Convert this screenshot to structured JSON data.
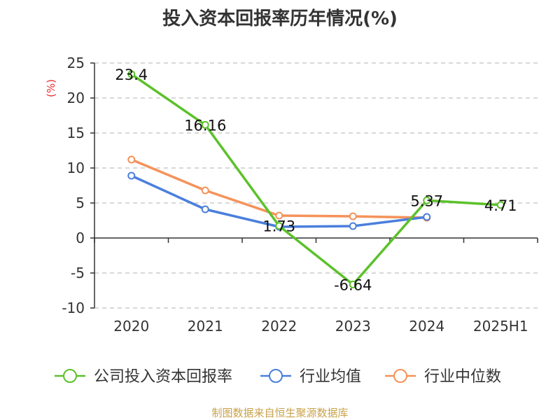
{
  "title": "投入资本回报率历年情况(%)",
  "source": "制图数据来自恒生聚源数据库",
  "colors": {
    "axis": "#333333",
    "grid": "#cccccc",
    "ylabel": "#e8302f"
  },
  "chart_data": {
    "type": "line",
    "title": "投入资本回报率历年情况(%)",
    "ylabel": "(%)",
    "xlabel": "",
    "categories": [
      "2020",
      "2021",
      "2022",
      "2023",
      "2024",
      "2025H1"
    ],
    "ylim": [
      -10,
      25
    ],
    "yticks": [
      25,
      20,
      15,
      10,
      5,
      0,
      -5,
      -10
    ],
    "grid": true,
    "legend_position": "bottom",
    "series": [
      {
        "name": "公司投入资本回报率",
        "color": "#5cc12a",
        "values": [
          23.4,
          16.16,
          1.73,
          -6.64,
          5.37,
          4.71
        ],
        "labels": [
          "23.4",
          "16.16",
          "1.73",
          "-6.64",
          "5.37",
          "4.71"
        ]
      },
      {
        "name": "行业均值",
        "color": "#4a7fdc",
        "values": [
          8.9,
          4.1,
          1.6,
          1.7,
          3.0,
          null
        ],
        "labels": null
      },
      {
        "name": "行业中位数",
        "color": "#f5925a",
        "values": [
          11.2,
          6.8,
          3.2,
          3.1,
          2.9,
          null
        ],
        "labels": null
      }
    ]
  }
}
